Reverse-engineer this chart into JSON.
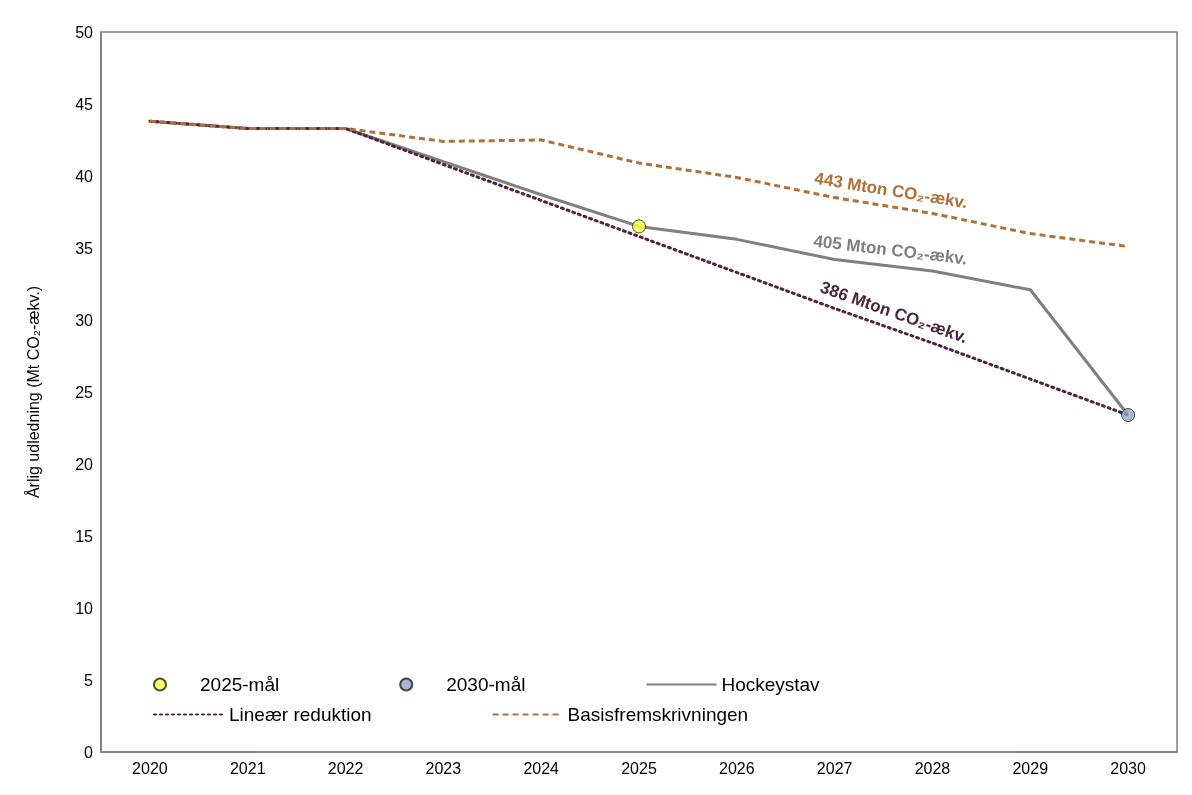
{
  "chart_data": {
    "type": "line",
    "ylabel": "Årlig udledning (Mt CO₂-ækv.)",
    "categories": [
      "2020",
      "2021",
      "2022",
      "2023",
      "2024",
      "2025",
      "2026",
      "2027",
      "2028",
      "2029",
      "2030"
    ],
    "ylim": [
      0,
      50
    ],
    "yticks": [
      0,
      5,
      10,
      15,
      20,
      25,
      30,
      35,
      40,
      45,
      50
    ],
    "grid": false,
    "legend": "bottom",
    "marker": "none",
    "series": [
      {
        "name": "2025-mål",
        "type": "scatter",
        "marker": "circle",
        "color": "#ffff40",
        "values": [
          null,
          null,
          null,
          null,
          null,
          36.5,
          null,
          null,
          null,
          null,
          null
        ]
      },
      {
        "name": "2030-mål",
        "type": "scatter",
        "marker": "circle",
        "color": "#8eaacb",
        "values": [
          null,
          null,
          null,
          null,
          null,
          null,
          null,
          null,
          null,
          null,
          23.4
        ]
      },
      {
        "name": "Hockeystav",
        "color": "#7f7f7f",
        "line_style": "solid",
        "values": [
          43.8,
          43.3,
          43.3,
          41.0,
          38.7,
          36.5,
          35.6,
          34.2,
          33.4,
          32.1,
          23.4
        ]
      },
      {
        "name": "Lineær reduktion",
        "color": "#4f2440",
        "line_style": "dotted",
        "values": [
          43.8,
          43.3,
          43.3,
          40.8,
          38.3,
          35.8,
          33.3,
          30.8,
          28.4,
          25.9,
          23.4
        ]
      },
      {
        "name": "Basisfremskrivningen",
        "color": "#b0703a",
        "line_style": "dashed",
        "values": [
          43.8,
          43.3,
          43.3,
          42.4,
          42.5,
          40.9,
          39.9,
          38.5,
          37.4,
          36.0,
          35.1
        ]
      }
    ],
    "annotations": [
      "405 Mton CO₂-ækv.",
      "386 Mton CO₂-ækv.",
      "443 Mton CO₂-ækv."
    ]
  }
}
